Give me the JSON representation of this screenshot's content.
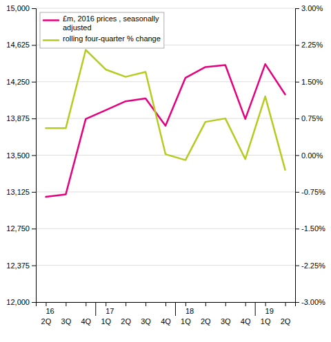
{
  "chart_data": {
    "type": "line",
    "categories": [
      "2Q",
      "3Q",
      "4Q",
      "1Q",
      "2Q",
      "3Q",
      "4Q",
      "1Q",
      "2Q",
      "3Q",
      "4Q",
      "1Q",
      "2Q"
    ],
    "annotations": [
      {
        "text": "16",
        "at": 0
      },
      {
        "text": "17",
        "at": 3
      },
      {
        "text": "18",
        "at": 7
      },
      {
        "text": "19",
        "at": 11
      }
    ],
    "series": [
      {
        "name": "£m, 2016 prices , seasonally\nadjusted",
        "color": "#e6007e",
        "axis": "y",
        "values": [
          13075,
          13100,
          13870,
          13960,
          14050,
          14080,
          13800,
          14290,
          14400,
          14420,
          13870,
          14430,
          14120
        ]
      },
      {
        "name": "rolling four-quarter % change",
        "color": "#b5cc1e",
        "axis": "y2",
        "values": [
          0.55,
          0.55,
          2.15,
          1.75,
          1.6,
          1.7,
          0.02,
          -0.1,
          0.68,
          0.75,
          -0.08,
          1.2,
          -0.3
        ]
      }
    ],
    "ylim": [
      12000,
      15000
    ],
    "yticks": [
      {
        "value": 12000,
        "label": "12,000"
      },
      {
        "value": 12375,
        "label": "12,375"
      },
      {
        "value": 12750,
        "label": "12,750"
      },
      {
        "value": 13125,
        "label": "13,125"
      },
      {
        "value": 13500,
        "label": "13,500"
      },
      {
        "value": 13875,
        "label": "13,875"
      },
      {
        "value": 14250,
        "label": "14,250"
      },
      {
        "value": 14625,
        "label": "14,625"
      },
      {
        "value": 15000,
        "label": "15,000"
      }
    ],
    "y2lim": [
      -3.0,
      3.0
    ],
    "y2ticks": [
      {
        "value": -3.0,
        "label": "-3.00%"
      },
      {
        "value": -2.25,
        "label": "-2.25%"
      },
      {
        "value": -1.5,
        "label": "-1.50%"
      },
      {
        "value": -0.75,
        "label": "-0.75%"
      },
      {
        "value": 0.0,
        "label": "0.00%"
      },
      {
        "value": 0.75,
        "label": "0.75%"
      },
      {
        "value": 1.5,
        "label": "1.50%"
      },
      {
        "value": 2.25,
        "label": "2.25%"
      },
      {
        "value": 3.0,
        "label": "3.00%"
      }
    ],
    "grid": true,
    "legend": "upper left"
  }
}
